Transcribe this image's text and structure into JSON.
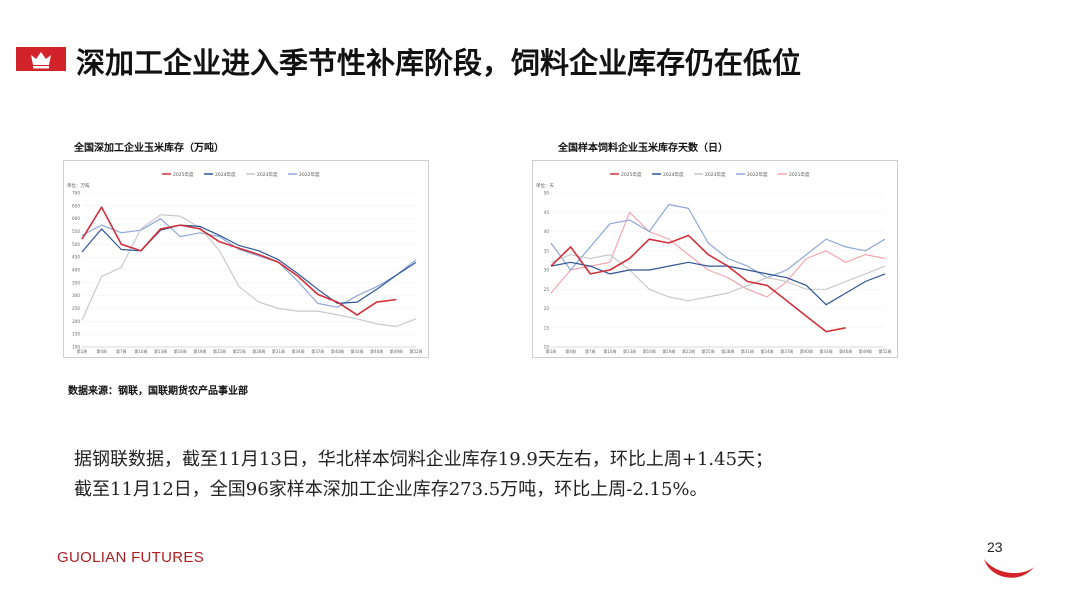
{
  "page": {
    "title": "深加工企业进入季节性补库阶段，饲料企业库存仍在低位",
    "source": "数据来源：钢联，国联期货农产品事业部",
    "body_lines": [
      "据钢联数据，截至11月13日，华北样本饲料企业库存19.9天左右，环比上周+1.45天；",
      "截至11月12日，全国96家样本深加工企业库存273.5万吨，环比上周-2.15%。"
    ],
    "brand": "GUOLIAN FUTURES",
    "page_number": "23"
  },
  "chart_data": [
    {
      "type": "line",
      "title": "全国深加工企业玉米库存（万吨）",
      "unit_label": "单位：万吨",
      "ylim": [
        100,
        700
      ],
      "yticks": [
        100,
        150,
        200,
        250,
        300,
        350,
        400,
        450,
        500,
        550,
        600,
        650,
        700
      ],
      "x": [
        1,
        4,
        7,
        10,
        13,
        16,
        19,
        22,
        25,
        28,
        31,
        34,
        37,
        40,
        43,
        46,
        49,
        52
      ],
      "xticklabels": [
        "第1周",
        "第4周",
        "第7周",
        "第10周",
        "第13周",
        "第16周",
        "第19周",
        "第22周",
        "第25周",
        "第28周",
        "第31周",
        "第34周",
        "第37周",
        "第40周",
        "第43周",
        "第46周",
        "第49周",
        "第52周"
      ],
      "series": [
        {
          "name": "2025年度",
          "color": "#d0313a",
          "values": [
            520,
            645,
            500,
            475,
            560,
            575,
            560,
            510,
            485,
            460,
            430,
            375,
            305,
            275,
            225,
            275,
            285,
            null
          ]
        },
        {
          "name": "2024年度",
          "color": "#2f5597",
          "values": [
            470,
            560,
            480,
            475,
            555,
            575,
            570,
            535,
            495,
            475,
            440,
            385,
            325,
            270,
            275,
            325,
            380,
            430
          ]
        },
        {
          "name": "2023年度",
          "color": "#c9c9c9",
          "values": [
            205,
            375,
            410,
            560,
            615,
            610,
            565,
            475,
            335,
            275,
            250,
            240,
            240,
            225,
            210,
            190,
            180,
            210
          ]
        },
        {
          "name": "2022年度",
          "color": "#8fa8d8",
          "values": [
            535,
            575,
            545,
            555,
            600,
            530,
            545,
            530,
            480,
            455,
            430,
            355,
            270,
            255,
            300,
            335,
            380,
            440
          ]
        }
      ]
    },
    {
      "type": "line",
      "title": "全国样本饲料企业玉米库存天数（日）",
      "unit_label": "单位：天",
      "ylim": [
        10,
        50
      ],
      "yticks": [
        10,
        15,
        20,
        25,
        30,
        35,
        40,
        45,
        50
      ],
      "x": [
        1,
        4,
        7,
        10,
        13,
        16,
        19,
        22,
        25,
        28,
        31,
        34,
        37,
        40,
        43,
        46,
        49,
        52
      ],
      "xticklabels": [
        "第1周",
        "第4周",
        "第7周",
        "第10周",
        "第13周",
        "第16周",
        "第19周",
        "第22周",
        "第25周",
        "第28周",
        "第31周",
        "第34周",
        "第37周",
        "第40周",
        "第43周",
        "第46周",
        "第49周",
        "第52周"
      ],
      "series": [
        {
          "name": "2025年度",
          "color": "#d0313a",
          "values": [
            31,
            36,
            29,
            30,
            33,
            38,
            37,
            39,
            34,
            31,
            27,
            26,
            22,
            18,
            14,
            15,
            null,
            null
          ]
        },
        {
          "name": "2024年度",
          "color": "#2f5597",
          "values": [
            31,
            32,
            31,
            29,
            30,
            30,
            31,
            32,
            31,
            31,
            30,
            29,
            28,
            26,
            21,
            24,
            27,
            29
          ]
        },
        {
          "name": "2023年度",
          "color": "#c9c9c9",
          "values": [
            32,
            34,
            33,
            34,
            30,
            25,
            23,
            22,
            23,
            24,
            26,
            28,
            27,
            25,
            25,
            27,
            29,
            31
          ]
        },
        {
          "name": "2022年度",
          "color": "#8fa8d8",
          "values": [
            37,
            30,
            36,
            42,
            43,
            40,
            47,
            46,
            37,
            33,
            31,
            28,
            30,
            34,
            38,
            36,
            35,
            38
          ]
        },
        {
          "name": "2021年度",
          "color": "#f4a6b0",
          "values": [
            24,
            30,
            31,
            32,
            45,
            40,
            38,
            34,
            30,
            28,
            25,
            23,
            27,
            33,
            35,
            32,
            34,
            33
          ]
        }
      ]
    }
  ]
}
